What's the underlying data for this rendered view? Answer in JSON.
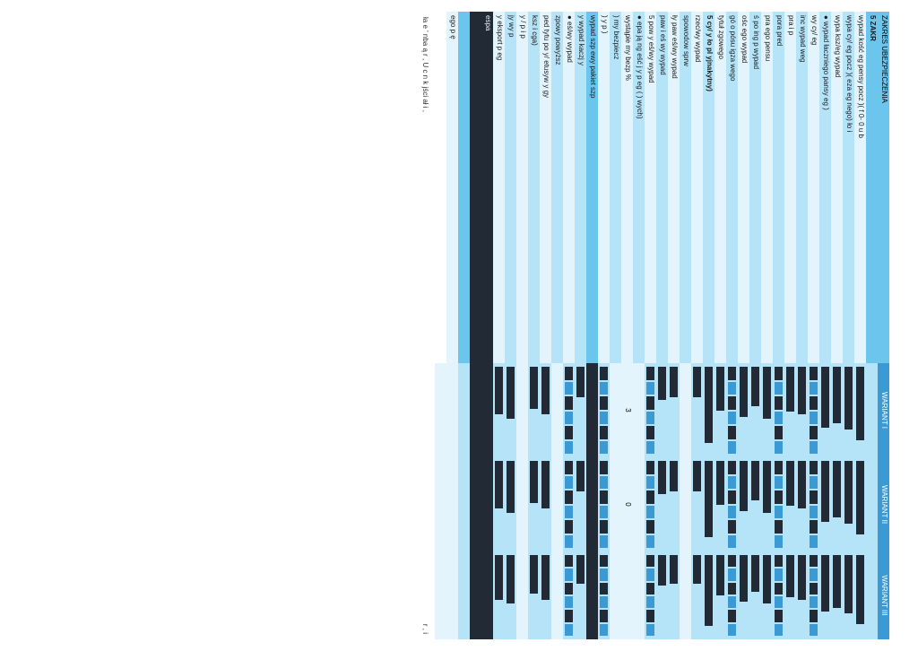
{
  "colors": {
    "row_blue": "#b5e3f7",
    "row_lightblue": "#e3f4fc",
    "row_deepblue": "#6cc5ec",
    "row_darkcell": "#212a35",
    "row_medblue": "#3b9ad3",
    "row_white": "#ffffff",
    "text": "#1a1a1a"
  },
  "header": {
    "title": "ZAKRES UBEZPIECZENIA",
    "col_a": "WARIANT I",
    "col_b": "WARIANT II",
    "col_c": "WARIANT III"
  },
  "rows": [
    {
      "bg": "row_deepblue",
      "label": "5   ZAKR",
      "a_bar": 0,
      "b_bar": 0,
      "c_bar": 0,
      "header": true
    },
    {
      "bg": "row_lightblue",
      "label": "     wypad           kość  eg    pensy  pocz         )(                   f          0- 0     u b",
      "a_bar": 85,
      "b_bar": 85,
      "c_bar": 85
    },
    {
      "bg": "row_blue",
      "label": "     wypa                          cy/ eg     pocz              )(           eza   eg         nego)               ło  i",
      "a_bar": 72,
      "b_bar": 72,
      "c_bar": 72
    },
    {
      "bg": "row_lightblue",
      "label": "     wypa                         ksz/eg         wypad",
      "a_bar": 65,
      "b_bar": 65,
      "c_bar": 65
    },
    {
      "bg": "row_blue",
      "label": " ●  wypad                    łaczniego    pansy              eg  )",
      "a_bar": 70,
      "b_bar": 70,
      "c_bar": 70
    },
    {
      "bg": "row_lightblue",
      "label": "     wy               cy/  eg                                                                    ",
      "a_bar": 48,
      "b_bar": 48,
      "c_bar": 48,
      "pattern": true
    },
    {
      "bg": "row_blue",
      "label": "     inc                         wypad         weg",
      "a_bar": 55,
      "b_bar": 55,
      "c_bar": 55
    },
    {
      "bg": "row_lightblue",
      "label": "     pra  i                                                  p",
      "a_bar": 52,
      "b_bar": 52,
      "c_bar": 52
    },
    {
      "bg": "row_blue",
      "label": "     pora           pred                                                                              ",
      "a_bar": 40,
      "b_bar": 40,
      "c_bar": 40,
      "pattern": true
    },
    {
      "bg": "row_lightblue",
      "label": "     pra                         ego  pensu",
      "a_bar": 60,
      "b_bar": 60,
      "c_bar": 60
    },
    {
      "bg": "row_blue",
      "label": "     ś                 po                      ing          p      wypad",
      "a_bar": 45,
      "b_bar": 45,
      "c_bar": 45
    },
    {
      "bg": "row_lightblue",
      "label": "     ośc                 ego  wypad",
      "a_bar": 58,
      "b_bar": 58,
      "c_bar": 58
    },
    {
      "bg": "row_blue",
      "label": "                                gó       o         pósu                            igza  wego",
      "a_bar": 42,
      "b_bar": 42,
      "c_bar": 42,
      "pattern": true
    },
    {
      "bg": "row_lightblue",
      "label": "               tytuł                           zgowego",
      "a_bar": 50,
      "b_bar": 50,
      "c_bar": 50
    },
    {
      "bg": "row_blue",
      "label": "5    cy/         y                                    ło        pl     yjnakytny)",
      "a_bar": 88,
      "b_bar": 88,
      "c_bar": 88,
      "header": true
    },
    {
      "bg": "row_lightblue",
      "label": "                                                          rzec/wy  wypad",
      "a_bar": 35,
      "b_bar": 35,
      "c_bar": 35
    },
    {
      "bg": "row_blue",
      "label": "               spowodow                 sprw",
      "a_bar": 30,
      "b_bar": 30,
      "c_bar": 30,
      "gap": true
    },
    {
      "bg": "row_lightblue",
      "label": "               ły                            paw               eś/wy   wypad",
      "a_bar": 35,
      "b_bar": 35,
      "c_bar": 35
    },
    {
      "bg": "row_blue",
      "label": "                                   paw          i                       eś    wy   wypad",
      "a_bar": 38,
      "b_bar": 38,
      "c_bar": 38
    },
    {
      "bg": "row_lightblue",
      "label": "5                               pow       y                                  eś/wy   wypad",
      "a_bar": 45,
      "b_bar": 45,
      "c_bar": 45,
      "pattern": true
    },
    {
      "bg": "row_blue",
      "label": " ●  epa   ją    ng               eść  j        y       p       eg  (     )                wych)",
      "a_bar": 40,
      "b_bar": 0,
      "c_bar": 0,
      "gap": true
    },
    {
      "bg": "row_lightblue",
      "label": "     wystąpie                            my   bezp                                                              %",
      "a_txt": "3",
      "b_txt": "0",
      "c_txt": ""
    },
    {
      "bg": "row_blue",
      "label": "                     )                    my   bezpiecz",
      "a_bar": 20,
      "b_bar": 20,
      "c_bar": 20,
      "gap": true
    },
    {
      "bg": "row_lightblue",
      "label": "                     )                    y     p         )",
      "a_bar": 25,
      "b_bar": 25,
      "c_bar": 25,
      "pattern": true
    },
    {
      "bg": "row_deepblue",
      "label": "     wypad           szp                          ewy  pakiet  szp",
      "a_bar": 90,
      "b_bar": 90,
      "c_bar": 90,
      "solid": true
    },
    {
      "bg": "row_blue",
      "label": "                                   y  wypad    kaczj  y",
      "a_bar": 35,
      "b_bar": 35,
      "c_bar": 35
    },
    {
      "bg": "row_lightblue",
      "label": " ●           eś/wy   wypad",
      "a_bar": 30,
      "b_bar": 30,
      "c_bar": 30,
      "pattern": true
    },
    {
      "bg": "row_blue",
      "label": "     zpowy  powyższ",
      "a_bar": 25,
      "b_bar": 25,
      "c_bar": 25,
      "gap": true
    },
    {
      "bg": "row_lightblue",
      "label": "     ped                              tytu  po  y/                                   etusyw                y   gy",
      "a_bar": 55,
      "b_bar": 55,
      "c_bar": 55
    },
    {
      "bg": "row_blue",
      "label": "     ksz                                                         i                                   cga)",
      "a_bar": 48,
      "b_bar": 48,
      "c_bar": 48
    },
    {
      "bg": "row_lightblue",
      "label": "          y  /                  p                        i                                            p",
      "a_bar": 0,
      "b_bar": 0,
      "c_bar": 0,
      "gap": true
    },
    {
      "bg": "row_blue",
      "label": "                     jy           wy      p",
      "a_bar": 60,
      "b_bar": 60,
      "c_bar": 60
    },
    {
      "bg": "row_lightblue",
      "label": "          y  eksport           p         eg",
      "a_bar": 55,
      "b_bar": 55,
      "c_bar": 55
    },
    {
      "bg": "row_deepblue",
      "label": "      espa",
      "a_bar": 95,
      "b_bar": 95,
      "c_bar": 95,
      "solid": true,
      "block": true
    },
    {
      "bg": "row_deepblue",
      "label": "",
      "a_bar": 95,
      "b_bar": 95,
      "c_bar": 95,
      "solid": true,
      "block": true
    },
    {
      "bg": "row_medblue",
      "label": "",
      "a_bar": 0,
      "b_bar": 0,
      "c_bar": 0,
      "block_med": true
    },
    {
      "bg": "row_lightblue",
      "label": "     ego          p    ę",
      "a_bar": 0,
      "b_bar": 0,
      "c_bar": 0,
      "gap": true
    },
    {
      "bg": "row_white",
      "label": "",
      "a_bar": 0,
      "b_bar": 0,
      "c_bar": 0,
      "gap": true
    }
  ],
  "footer": {
    "left": "ła  e '    nba  ą         r ,                U    c  n           k         jści           ał         i  ,",
    "right": "r                     ,                      i"
  }
}
